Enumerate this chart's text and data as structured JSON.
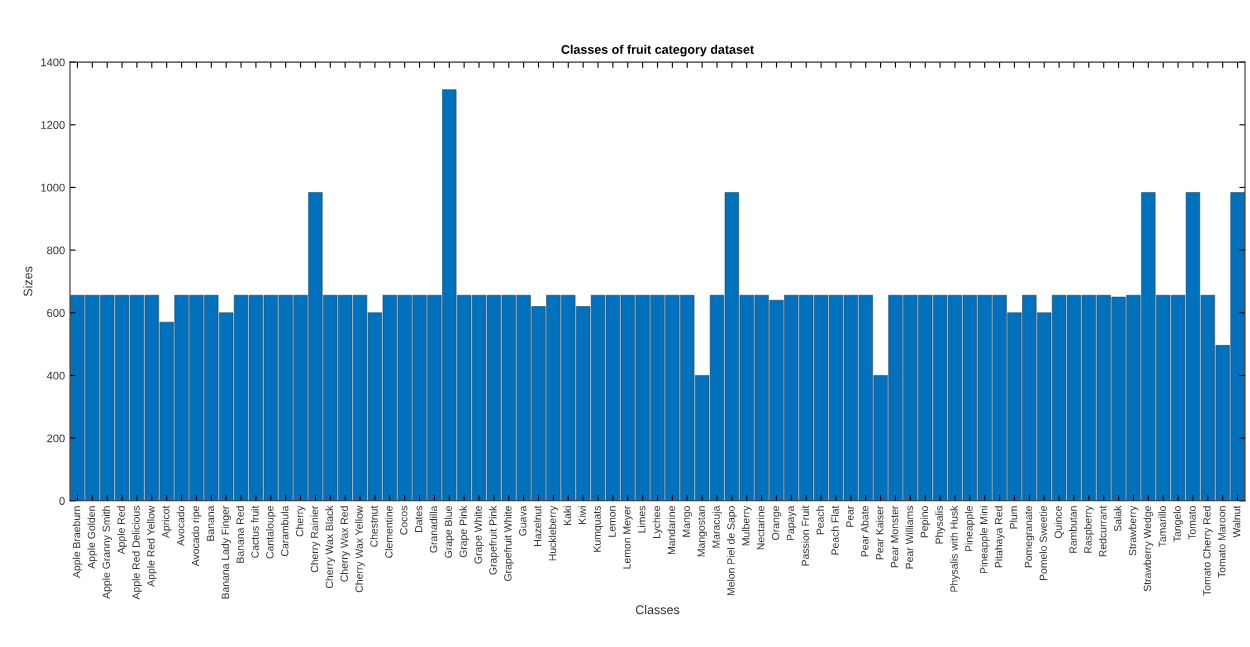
{
  "chart_data": {
    "type": "bar",
    "title": "Classes of fruit category dataset",
    "xlabel": "Classes",
    "ylabel": "Sizes",
    "categories": [
      "Apple Braeburn",
      "Apple Golden",
      "Apple Granny Smith",
      "Apple Red",
      "Apple Red Delicious",
      "Apple Red Yellow",
      "Apricot",
      "Avocado",
      "Avocado ripe",
      "Banana",
      "Banana Lady Finger",
      "Banana Red",
      "Cactus fruit",
      "Cantaloupe",
      "Carambula",
      "Cherry",
      "Cherry Rainier",
      "Cherry Wax Black",
      "Cherry Wax Red",
      "Cherry Wax Yellow",
      "Chestnut",
      "Clementine",
      "Cocos",
      "Dates",
      "Granadilla",
      "Grape Blue",
      "Grape Pink",
      "Grape White",
      "Grapefruit Pink",
      "Grapefruit White",
      "Guava",
      "Hazelnut",
      "Huckleberry",
      "Kaki",
      "Kiwi",
      "Kumquats",
      "Lemon",
      "Lemon Meyer",
      "Limes",
      "Lychee",
      "Mandarine",
      "Mango",
      "Mangostan",
      "Maracuja",
      "Melon Piel de Sapo",
      "Mulberry",
      "Nectarine",
      "Orange",
      "Papaya",
      "Passion Fruit",
      "Peach",
      "Peach Flat",
      "Pear",
      "Pear Abate",
      "Pear Kaiser",
      "Pear Monster",
      "Pear Williams",
      "Pepino",
      "Physalis",
      "Physalis with Husk",
      "Pineapple",
      "Pineapple Mini",
      "Pitahaya Red",
      "Plum",
      "Pomegranate",
      "Pomelo Sweetie",
      "Quince",
      "Rambutan",
      "Raspberry",
      "Redcurrant",
      "Salak",
      "Strawberry",
      "Strawberry Wedge",
      "Tamarillo",
      "Tangelo",
      "Tomato",
      "Tomato Cherry Red",
      "Tomato Maroon",
      "Walnut"
    ],
    "values": [
      656,
      656,
      656,
      656,
      656,
      656,
      570,
      656,
      656,
      656,
      600,
      656,
      656,
      656,
      656,
      656,
      984,
      656,
      656,
      656,
      600,
      656,
      656,
      656,
      656,
      1312,
      656,
      656,
      656,
      656,
      656,
      620,
      656,
      656,
      620,
      656,
      656,
      656,
      656,
      656,
      656,
      656,
      400,
      656,
      984,
      656,
      656,
      640,
      656,
      656,
      656,
      656,
      656,
      656,
      400,
      656,
      656,
      656,
      656,
      656,
      656,
      656,
      656,
      600,
      656,
      600,
      656,
      656,
      656,
      656,
      650,
      656,
      984,
      656,
      656,
      984,
      656,
      496,
      984
    ],
    "color": "#0072bd",
    "ylim": [
      0,
      1400
    ],
    "yticks": [
      0,
      200,
      400,
      600,
      800,
      1000,
      1200,
      1400
    ],
    "grid": false
  }
}
